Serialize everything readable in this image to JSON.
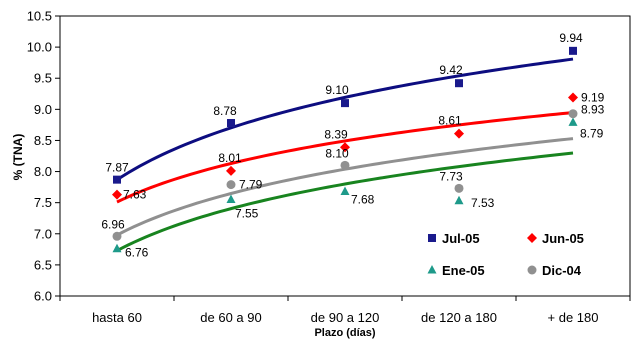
{
  "chart_data": {
    "type": "scatter",
    "title": "",
    "xlabel": "Plazo (días)",
    "ylabel": "% (TNA)",
    "categories": [
      "hasta 60",
      "de 60 a 90",
      "de 90 a 120",
      "de 120 a 180",
      "+ de 180"
    ],
    "ylim": [
      6.0,
      10.5
    ],
    "yticks": [
      "6.0",
      "6.5",
      "7.0",
      "7.5",
      "8.0",
      "8.5",
      "9.0",
      "9.5",
      "10.0",
      "10.5"
    ],
    "grid": false,
    "legend_placement": "bottom-right",
    "trendline": "logarithmic",
    "series": [
      {
        "name": "Jul-05",
        "marker": "square",
        "color": "#1a1a8c",
        "values": [
          7.87,
          8.78,
          9.1,
          9.42,
          9.94
        ],
        "labels": [
          "7.87",
          "8.78",
          "9.10",
          "9.42",
          "9.94"
        ]
      },
      {
        "name": "Jun-05",
        "marker": "diamond",
        "color": "#ff0000",
        "values": [
          7.63,
          8.01,
          8.39,
          8.61,
          9.19
        ],
        "labels": [
          "7.63",
          "8.01",
          "8.39",
          "8.61",
          "9.19"
        ]
      },
      {
        "name": "Ene-05",
        "marker": "triangle",
        "color": "#1e9a8a",
        "values": [
          6.76,
          7.55,
          7.68,
          7.53,
          8.79
        ],
        "labels": [
          "6.76",
          "7.55",
          "7.68",
          "7.53",
          "8.79"
        ]
      },
      {
        "name": "Dic-04",
        "marker": "circle",
        "color": "#909090",
        "values": [
          6.96,
          7.79,
          8.1,
          7.73,
          8.93
        ],
        "labels": [
          "6.96",
          "7.79",
          "8.10",
          "7.73",
          "8.93"
        ]
      }
    ],
    "trend_colors": [
      "#0d0d80",
      "#ff0000",
      "#18841f",
      "#909090"
    ]
  }
}
